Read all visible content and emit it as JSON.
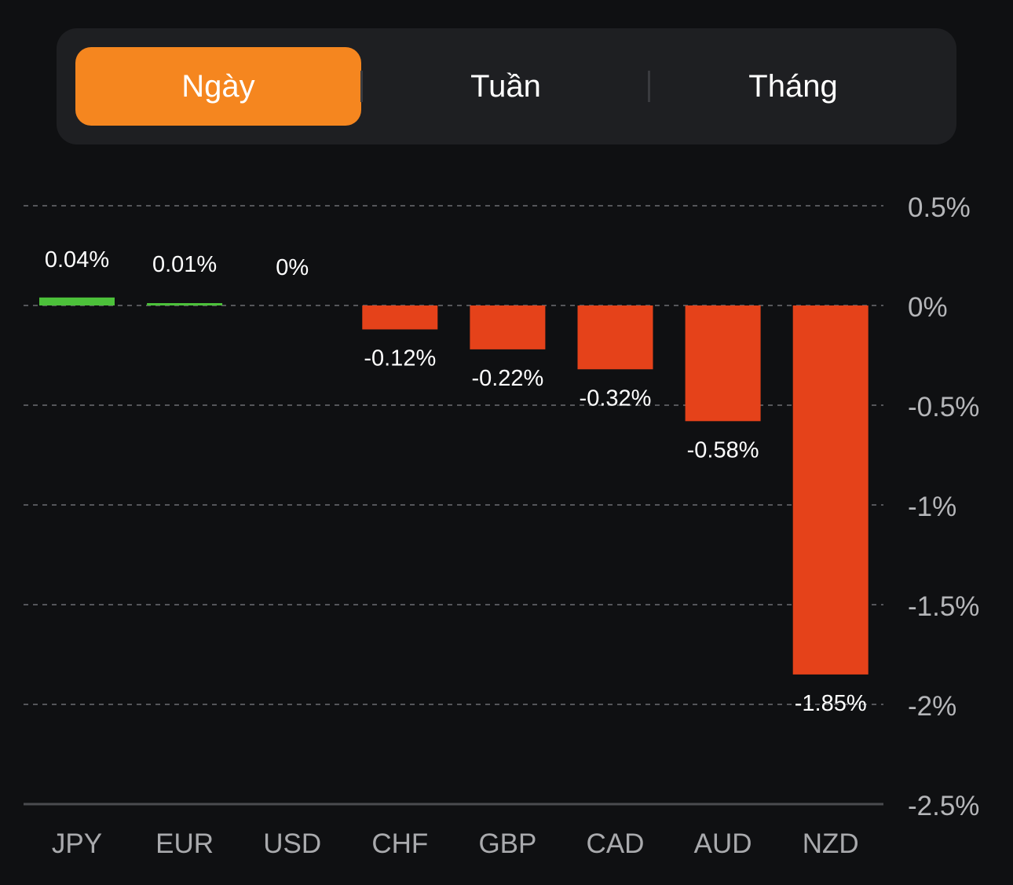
{
  "period_tabs": {
    "items": [
      {
        "label": "Ngày",
        "active": true
      },
      {
        "label": "Tuần",
        "active": false
      },
      {
        "label": "Tháng",
        "active": false
      }
    ],
    "active_color": "#f5861f"
  },
  "chart_data": {
    "type": "bar",
    "categories": [
      "JPY",
      "EUR",
      "USD",
      "CHF",
      "GBP",
      "CAD",
      "AUD",
      "NZD"
    ],
    "values": [
      0.04,
      0.01,
      0,
      -0.12,
      -0.22,
      -0.32,
      -0.58,
      -1.85
    ],
    "value_labels": [
      "0.04%",
      "0.01%",
      "0%",
      "-0.12%",
      "-0.22%",
      "-0.32%",
      "-0.58%",
      "-1.85%"
    ],
    "y_ticks": [
      0.5,
      0,
      -0.5,
      -1,
      -1.5,
      -2,
      -2.5
    ],
    "y_tick_labels": [
      "0.5%",
      "0%",
      "-0.5%",
      "-1%",
      "-1.5%",
      "-2%",
      "-2.5%"
    ],
    "ylim": [
      -2.5,
      0.5
    ],
    "y_axis_position": "right",
    "grid": "dashed horizontal",
    "positive_color": "#4cc13a",
    "negative_color": "#e5421a"
  }
}
